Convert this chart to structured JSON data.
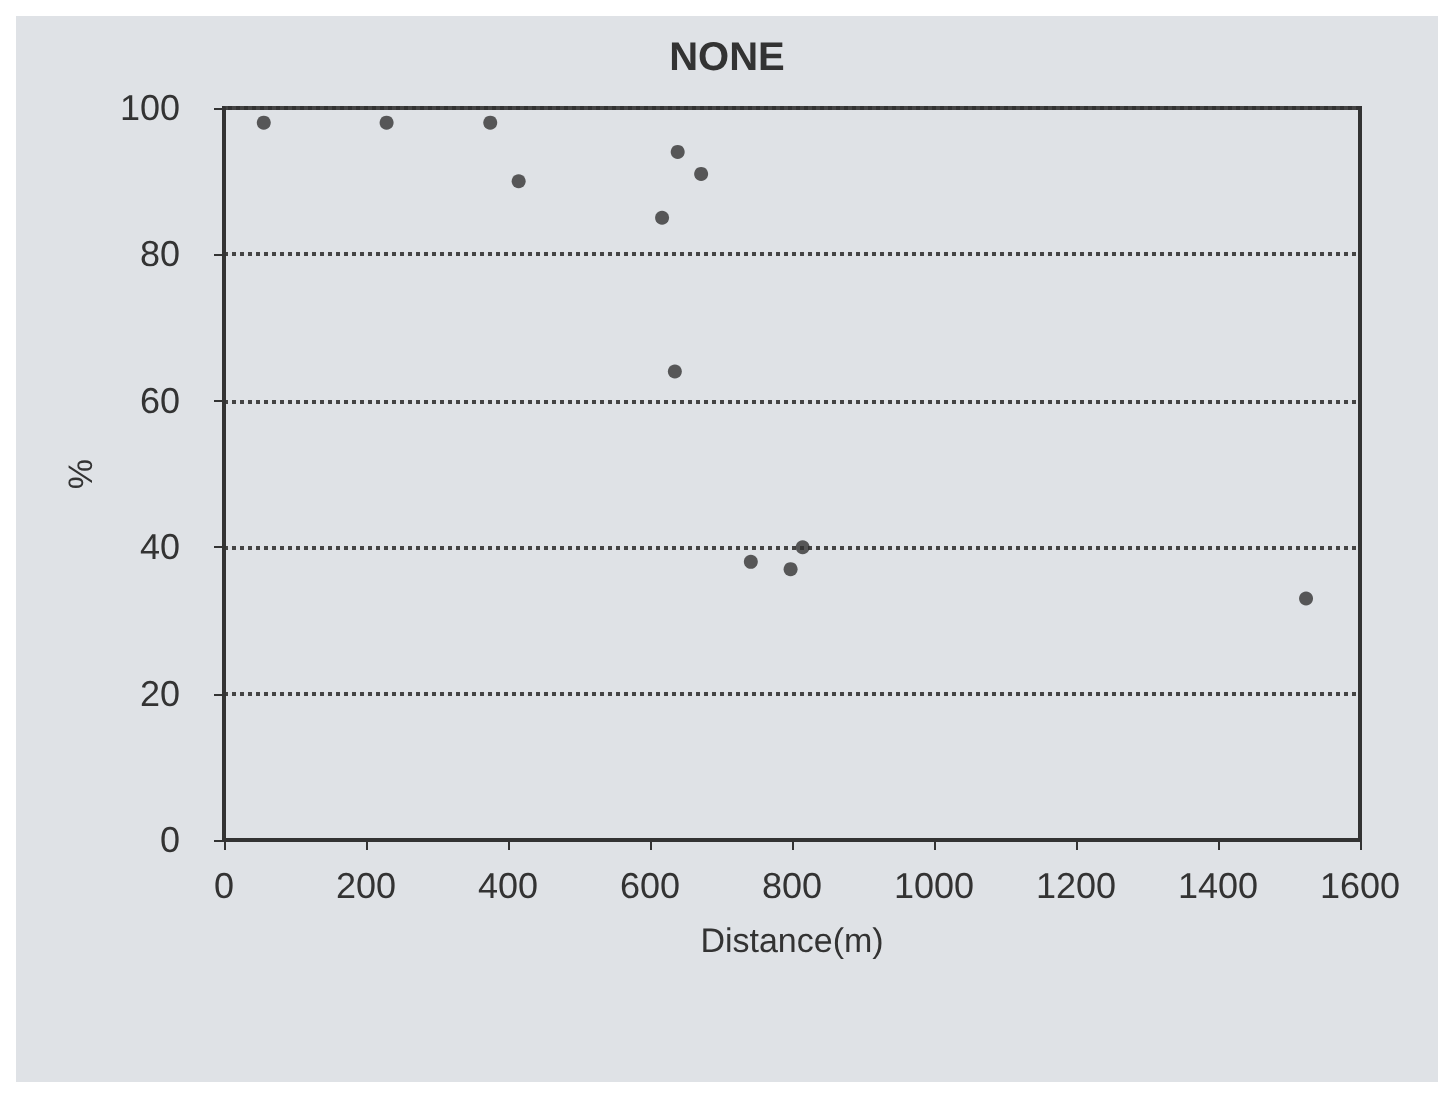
{
  "chart_data": {
    "type": "scatter",
    "title": "NONE",
    "xlabel": "Distance(m)",
    "ylabel": "%",
    "x": [
      56,
      229,
      375,
      415,
      617,
      639,
      672,
      635,
      742,
      798,
      815,
      1524
    ],
    "values": [
      98,
      98,
      98,
      90,
      85,
      94,
      91,
      64,
      38,
      37,
      40,
      33
    ],
    "color": "#333333",
    "marker": "circle",
    "grid": "y",
    "line_style": "dotted",
    "xlim": [
      0,
      1600
    ],
    "xticks": [
      0,
      200,
      400,
      600,
      800,
      1000,
      1200,
      1400,
      1600
    ],
    "ylim": [
      0,
      100
    ],
    "yticks": [
      0,
      20,
      40,
      60,
      80,
      100
    ]
  }
}
